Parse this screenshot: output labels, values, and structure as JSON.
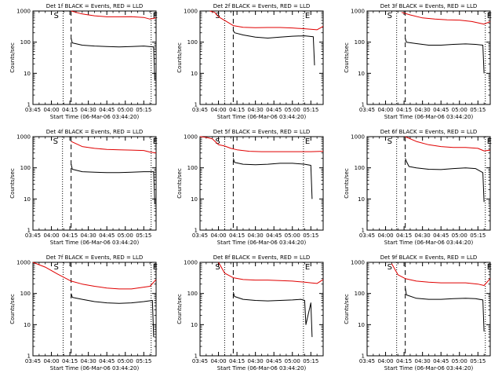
{
  "figure": {
    "y_label": "Counts/sec",
    "x_label": "Start Time (06-Mar-06 03:44:20)",
    "x_ticks": [
      "03:45",
      "04:00",
      "04:15",
      "04:30",
      "04:45",
      "05:00",
      "05:15"
    ],
    "y_ticks": [
      "1",
      "10",
      "100",
      "1000"
    ],
    "marker_s": "S",
    "marker_e": "E",
    "colors": {
      "events": "#000000",
      "lld": "#e00000",
      "axes": "#000000",
      "background": "#ffffff"
    }
  },
  "chart_data": [
    {
      "type": "line",
      "title": "Det 1f BLACK = Events, RED = LLD",
      "x_range_min": [
        0,
        100
      ],
      "ylim": [
        1,
        1000
      ],
      "y_scale": "log",
      "vlines_dotted": [
        24.5,
        96
      ],
      "vline_dashed": 31,
      "end_time": 100,
      "series": [
        {
          "key": "events",
          "x": [
            31,
            32,
            40,
            50,
            60,
            70,
            80,
            90,
            98,
            99
          ],
          "values": [
            130,
            95,
            80,
            75,
            72,
            70,
            72,
            75,
            70,
            6
          ]
        },
        {
          "key": "lld",
          "x": [
            31,
            40,
            50,
            60,
            70,
            80,
            90,
            95,
            100
          ],
          "values": [
            1000,
            800,
            700,
            650,
            650,
            660,
            620,
            550,
            600
          ]
        }
      ]
    },
    {
      "type": "line",
      "title": "Det 2f BLACK = Events, RED = LLD",
      "x_range_min": [
        0,
        100
      ],
      "ylim": [
        1,
        1000
      ],
      "y_scale": "log",
      "vlines_dotted": [
        20,
        84
      ],
      "vline_dashed": 27,
      "end_time": 100,
      "series": [
        {
          "key": "events",
          "x": [
            27,
            28,
            35,
            45,
            55,
            65,
            75,
            85,
            92,
            93
          ],
          "values": [
            240,
            200,
            170,
            145,
            135,
            145,
            155,
            160,
            150,
            18
          ]
        },
        {
          "key": "lld",
          "x": [
            8,
            12,
            15,
            20,
            27,
            35,
            45,
            55,
            65,
            75,
            85,
            95,
            100
          ],
          "values": [
            1000,
            900,
            650,
            500,
            340,
            300,
            290,
            295,
            295,
            285,
            270,
            250,
            320
          ]
        }
      ]
    },
    {
      "type": "line",
      "title": "Det 3f BLACK = Events, RED = LLD",
      "x_range_min": [
        0,
        100
      ],
      "ylim": [
        1,
        1000
      ],
      "y_scale": "log",
      "vlines_dotted": [
        24,
        96
      ],
      "vline_dashed": 31,
      "end_time": 100,
      "series": [
        {
          "key": "events",
          "x": [
            31,
            32,
            40,
            50,
            60,
            70,
            80,
            88,
            94,
            95
          ],
          "values": [
            130,
            100,
            90,
            80,
            80,
            85,
            88,
            85,
            80,
            10
          ]
        },
        {
          "key": "lld",
          "x": [
            28,
            35,
            45,
            55,
            65,
            75,
            85,
            95,
            100
          ],
          "values": [
            900,
            750,
            600,
            550,
            520,
            510,
            460,
            380,
            460
          ]
        }
      ]
    },
    {
      "type": "line",
      "title": "Det 4f BLACK = Events, RED = LLD",
      "x_range_min": [
        0,
        100
      ],
      "ylim": [
        1,
        1000
      ],
      "y_scale": "log",
      "vlines_dotted": [
        24,
        96
      ],
      "vline_dashed": 31,
      "end_time": 100,
      "series": [
        {
          "key": "events",
          "x": [
            31,
            32,
            40,
            50,
            60,
            70,
            80,
            90,
            98,
            99
          ],
          "values": [
            130,
            90,
            75,
            72,
            70,
            70,
            72,
            75,
            75,
            7
          ]
        },
        {
          "key": "lld",
          "x": [
            31,
            40,
            50,
            60,
            70,
            80,
            90,
            95,
            100
          ],
          "values": [
            700,
            480,
            420,
            390,
            380,
            370,
            360,
            320,
            300
          ]
        }
      ]
    },
    {
      "type": "line",
      "title": "Det 5f BLACK = Events, RED = LLD",
      "x_range_min": [
        0,
        100
      ],
      "ylim": [
        1,
        1000
      ],
      "y_scale": "log",
      "vlines_dotted": [
        20,
        84
      ],
      "vline_dashed": 27,
      "end_time": 100,
      "series": [
        {
          "key": "events",
          "x": [
            27,
            28,
            35,
            45,
            55,
            65,
            75,
            85,
            90,
            91
          ],
          "values": [
            200,
            150,
            130,
            125,
            130,
            140,
            140,
            130,
            120,
            10
          ]
        },
        {
          "key": "lld",
          "x": [
            0,
            5,
            10,
            15,
            20,
            25,
            30,
            40,
            50,
            60,
            70,
            80,
            90,
            100
          ],
          "values": [
            1000,
            950,
            850,
            550,
            500,
            420,
            380,
            340,
            330,
            330,
            330,
            330,
            330,
            340
          ]
        }
      ]
    },
    {
      "type": "line",
      "title": "Det 6f BLACK = Events, RED = LLD",
      "x_range_min": [
        0,
        100
      ],
      "ylim": [
        1,
        1000
      ],
      "y_scale": "log",
      "vlines_dotted": [
        24,
        96
      ],
      "vline_dashed": 31,
      "end_time": 100,
      "series": [
        {
          "key": "events",
          "x": [
            31,
            32,
            34,
            40,
            50,
            60,
            70,
            80,
            88,
            94,
            95
          ],
          "values": [
            200,
            160,
            110,
            100,
            90,
            88,
            95,
            100,
            95,
            70,
            8
          ]
        },
        {
          "key": "lld",
          "x": [
            31,
            40,
            50,
            60,
            70,
            80,
            90,
            95,
            100
          ],
          "values": [
            1000,
            700,
            550,
            480,
            450,
            450,
            420,
            350,
            370
          ]
        }
      ]
    },
    {
      "type": "line",
      "title": "Det 7f BLACK = Events, RED = LLD",
      "x_range_min": [
        0,
        100
      ],
      "ylim": [
        1,
        1000
      ],
      "y_scale": "log",
      "vlines_dotted": [
        24.5,
        96
      ],
      "vline_dashed": 31,
      "end_time": 100,
      "series": [
        {
          "key": "events",
          "x": [
            31,
            32,
            40,
            50,
            60,
            70,
            80,
            90,
            97,
            98
          ],
          "values": [
            100,
            75,
            65,
            55,
            50,
            48,
            50,
            55,
            60,
            4
          ]
        },
        {
          "key": "lld",
          "x": [
            0,
            10,
            20,
            31,
            40,
            50,
            60,
            70,
            80,
            90,
            95,
            100
          ],
          "values": [
            1000,
            700,
            420,
            250,
            200,
            170,
            150,
            140,
            140,
            160,
            170,
            280
          ]
        }
      ]
    },
    {
      "type": "line",
      "title": "Det 8f BLACK = Events, RED = LLD",
      "x_range_min": [
        0,
        100
      ],
      "ylim": [
        1,
        1000
      ],
      "y_scale": "log",
      "vlines_dotted": [
        20,
        84
      ],
      "vline_dashed": 27,
      "end_time": 100,
      "series": [
        {
          "key": "events",
          "x": [
            27,
            28,
            35,
            45,
            55,
            65,
            75,
            82,
            85,
            86,
            90,
            91
          ],
          "values": [
            110,
            80,
            65,
            60,
            58,
            60,
            62,
            65,
            60,
            10,
            50,
            4
          ]
        },
        {
          "key": "lld",
          "x": [
            15,
            20,
            27,
            35,
            45,
            55,
            65,
            75,
            80,
            85,
            90,
            95,
            100
          ],
          "values": [
            1000,
            450,
            320,
            280,
            270,
            270,
            260,
            250,
            240,
            230,
            220,
            210,
            280
          ]
        }
      ]
    },
    {
      "type": "line",
      "title": "Det 9f BLACK = Events, RED = LLD",
      "x_range_min": [
        0,
        100
      ],
      "ylim": [
        1,
        1000
      ],
      "y_scale": "log",
      "vlines_dotted": [
        24,
        96
      ],
      "vline_dashed": 31,
      "end_time": 100,
      "series": [
        {
          "key": "events",
          "x": [
            31,
            32,
            40,
            50,
            60,
            70,
            80,
            88,
            94,
            95
          ],
          "values": [
            150,
            90,
            70,
            65,
            65,
            68,
            70,
            68,
            62,
            6
          ]
        },
        {
          "key": "lld",
          "x": [
            20,
            25,
            31,
            40,
            50,
            60,
            70,
            80,
            90,
            95,
            100
          ],
          "values": [
            900,
            400,
            300,
            250,
            230,
            220,
            220,
            220,
            200,
            180,
            300
          ]
        }
      ]
    }
  ]
}
